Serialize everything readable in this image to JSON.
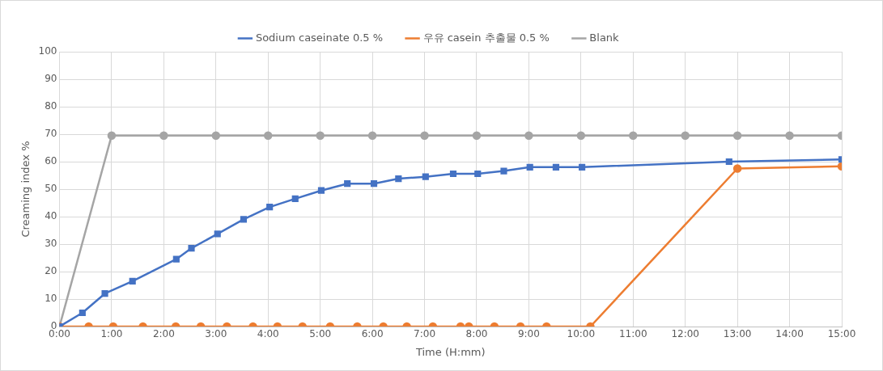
{
  "chart_data": {
    "type": "line",
    "xlabel": "Time (H:mm)",
    "ylabel": "Creaming index %",
    "legend": "top",
    "grid": true,
    "xlim": [
      0,
      15
    ],
    "xticks": [
      {
        "value": 0,
        "label": "0:00"
      },
      {
        "value": 1,
        "label": "1:00"
      },
      {
        "value": 2,
        "label": "2:00"
      },
      {
        "value": 3,
        "label": "3:00"
      },
      {
        "value": 4,
        "label": "4:00"
      },
      {
        "value": 5,
        "label": "5:00"
      },
      {
        "value": 6,
        "label": "6:00"
      },
      {
        "value": 7,
        "label": "7:00"
      },
      {
        "value": 8,
        "label": "8:00"
      },
      {
        "value": 9,
        "label": "9:00"
      },
      {
        "value": 10,
        "label": "10:00"
      },
      {
        "value": 11,
        "label": "11:00"
      },
      {
        "value": 12,
        "label": "12:00"
      },
      {
        "value": 13,
        "label": "13:00"
      },
      {
        "value": 14,
        "label": "14:00"
      },
      {
        "value": 15,
        "label": "15:00"
      }
    ],
    "ylim": [
      0,
      100
    ],
    "yticks": [
      0,
      10,
      20,
      30,
      40,
      50,
      60,
      70,
      80,
      90,
      100
    ],
    "series": [
      {
        "name": "Sodium caseinate 0.5 %",
        "color": "#4472c4",
        "marker": "square",
        "x": [
          0,
          0.44,
          0.87,
          1.4,
          2.24,
          2.53,
          3.03,
          3.53,
          4.03,
          4.52,
          5.02,
          5.52,
          6.03,
          6.5,
          7.02,
          7.55,
          8.02,
          8.52,
          9.02,
          9.52,
          10.02,
          12.84,
          15
        ],
        "values": [
          0,
          5,
          12,
          16.5,
          24.5,
          28.5,
          33.7,
          39,
          43.5,
          46.5,
          49.5,
          52,
          52,
          53.8,
          54.5,
          55.6,
          55.6,
          56.6,
          58,
          58,
          58,
          60,
          60.8
        ]
      },
      {
        "name": "우유 casein 추출물 0.5 %",
        "color": "#ed7d31",
        "marker": "circle",
        "x": [
          0,
          0.56,
          1.03,
          1.6,
          2.23,
          2.71,
          3.21,
          3.71,
          4.18,
          4.66,
          5.19,
          5.71,
          6.21,
          6.66,
          7.16,
          7.69,
          7.85,
          8.34,
          8.84,
          9.34,
          10.18,
          13,
          15
        ],
        "values": [
          0,
          0,
          0,
          0,
          0,
          0,
          0,
          0,
          0,
          0,
          0,
          0,
          0,
          0,
          0,
          0,
          0,
          0,
          0,
          0,
          0,
          57.5,
          58.3
        ]
      },
      {
        "name": "Blank",
        "color": "#a5a5a5",
        "marker": "circle",
        "x": [
          0,
          1,
          2,
          3,
          4,
          5,
          6,
          7,
          8,
          9,
          10,
          11,
          12,
          13,
          14,
          15
        ],
        "values": [
          0,
          69.5,
          69.5,
          69.5,
          69.5,
          69.5,
          69.5,
          69.5,
          69.5,
          69.5,
          69.5,
          69.5,
          69.5,
          69.5,
          69.5,
          69.5
        ]
      }
    ]
  }
}
